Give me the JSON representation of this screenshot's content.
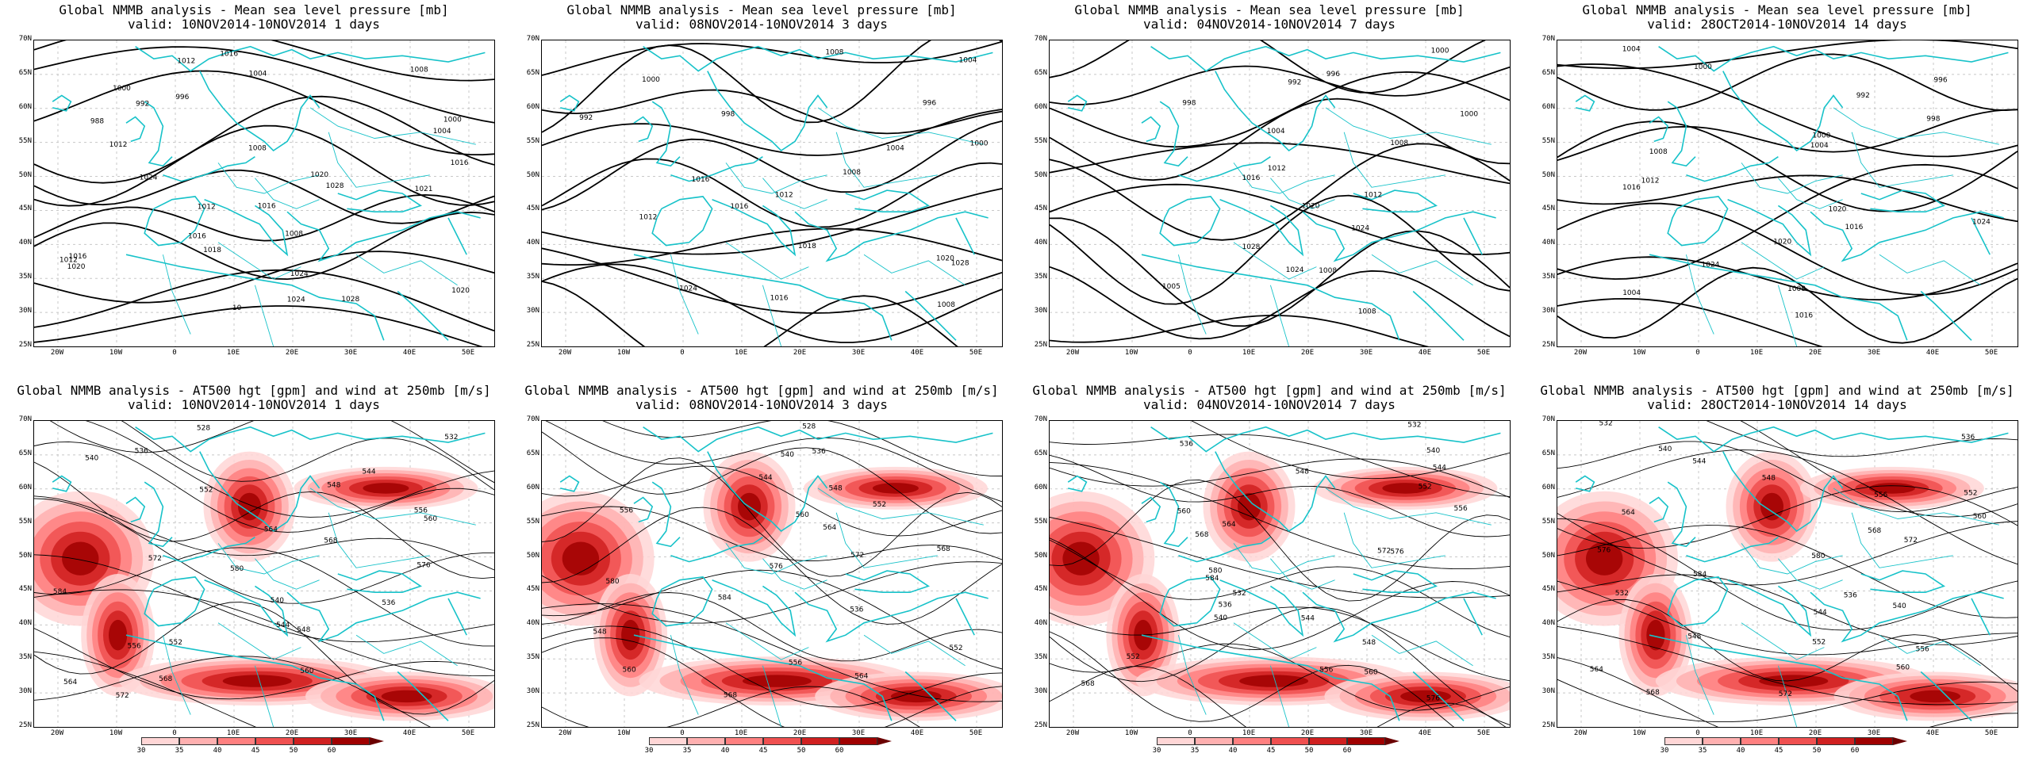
{
  "panels": [
    {
      "row": 0,
      "col": 0,
      "title_line1": "Global NMMB analysis - Mean sea level pressure [mb]",
      "title_line2": "valid: 10NOV2014-10NOV2014  1 days",
      "type": "mslp",
      "contour_labels": [
        "1016",
        "1012",
        "1008",
        "1004",
        "1000",
        "996",
        "992",
        "988",
        "1000",
        "1004",
        "1008",
        "1012",
        "1016",
        "1020",
        "1024",
        "1028",
        "1021",
        "1016",
        "1012",
        "1008",
        "1016",
        "1018",
        "1012",
        "1016",
        "1020",
        "1024",
        "1020",
        "1028",
        "1024",
        "10"
      ]
    },
    {
      "row": 0,
      "col": 1,
      "title_line1": "Global NMMB analysis - Mean sea level pressure [mb]",
      "title_line2": "valid: 08NOV2014-10NOV2014  3 days",
      "type": "mslp",
      "contour_labels": [
        "1008",
        "1004",
        "1000",
        "996",
        "992",
        "998",
        "1000",
        "1004",
        "1008",
        "1016",
        "1012",
        "1016",
        "1012",
        "1018",
        "1020",
        "1028",
        "1024",
        "1016",
        "1008"
      ]
    },
    {
      "row": 0,
      "col": 2,
      "title_line1": "Global NMMB analysis - Mean sea level pressure [mb]",
      "title_line2": "valid: 04NOV2014-10NOV2014  7 days",
      "type": "mslp",
      "contour_labels": [
        "1000",
        "996",
        "992",
        "998",
        "1000",
        "1004",
        "1008",
        "1012",
        "1016",
        "1012",
        "1020",
        "1024",
        "1028",
        "1024",
        "1008",
        "1005",
        "1008"
      ]
    },
    {
      "row": 0,
      "col": 3,
      "title_line1": "Global NMMB analysis - Mean sea level pressure [mb]",
      "title_line2": "valid: 28OCT2014-10NOV2014  14 days",
      "type": "mslp",
      "contour_labels": [
        "1004",
        "1000",
        "996",
        "992",
        "998",
        "1000",
        "1004",
        "1008",
        "1012",
        "1016",
        "1020",
        "1024",
        "1016",
        "1020",
        "1024",
        "1008",
        "1004",
        "1016"
      ]
    },
    {
      "row": 1,
      "col": 0,
      "title_line1": "Global NMMB analysis - AT500 hgt [gpm] and wind at 250mb [m/s]",
      "title_line2": "valid: 10NOV2014-10NOV2014  1 days",
      "type": "z500",
      "contour_labels": [
        "528",
        "532",
        "536",
        "540",
        "544",
        "548",
        "552",
        "556",
        "560",
        "564",
        "568",
        "572",
        "576",
        "580",
        "584",
        "536",
        "540",
        "544",
        "548",
        "552",
        "556",
        "560",
        "564",
        "568",
        "572"
      ]
    },
    {
      "row": 1,
      "col": 1,
      "title_line1": "Global NMMB analysis - AT500 hgt [gpm] and wind at 250mb [m/s]",
      "title_line2": "valid: 08NOV2014-10NOV2014  3 days",
      "type": "z500",
      "contour_labels": [
        "528",
        "536",
        "540",
        "544",
        "548",
        "552",
        "556",
        "560",
        "564",
        "568",
        "572",
        "576",
        "580",
        "584",
        "536",
        "548",
        "552",
        "556",
        "560",
        "564",
        "568"
      ]
    },
    {
      "row": 1,
      "col": 2,
      "title_line1": "Global NMMB analysis - AT500 hgt [gpm] and wind at 250mb [m/s]",
      "title_line2": "valid: 04NOV2014-10NOV2014  7 days",
      "type": "z500",
      "contour_labels": [
        "532",
        "536",
        "540",
        "544",
        "548",
        "552",
        "556",
        "560",
        "564",
        "568",
        "572",
        "576",
        "580",
        "584",
        "532",
        "536",
        "540",
        "544",
        "548",
        "552",
        "556",
        "560",
        "568",
        "576"
      ]
    },
    {
      "row": 1,
      "col": 3,
      "title_line1": "Global NMMB analysis - AT500 hgt [gpm] and wind at 250mb [m/s]",
      "title_line2": "valid: 28OCT2014-10NOV2014  14 days",
      "type": "z500",
      "contour_labels": [
        "532",
        "536",
        "540",
        "544",
        "548",
        "552",
        "556",
        "560",
        "564",
        "568",
        "572",
        "576",
        "580",
        "584",
        "532",
        "536",
        "540",
        "544",
        "548",
        "552",
        "556",
        "560",
        "564",
        "568",
        "572"
      ]
    }
  ],
  "lat_labels": [
    "70N",
    "65N",
    "60N",
    "55N",
    "50N",
    "45N",
    "40N",
    "35N",
    "30N",
    "25N"
  ],
  "lon_labels": [
    "20W",
    "10W",
    "0",
    "10E",
    "20E",
    "30E",
    "40E",
    "50E"
  ],
  "colorbar": {
    "ticks": [
      "30",
      "35",
      "40",
      "45",
      "50",
      "60"
    ],
    "colors": [
      "#ffd6d6",
      "#ffb0b0",
      "#ff8080",
      "#f05050",
      "#d02020",
      "#a00000"
    ],
    "tail_color": "#6b0000"
  },
  "colors": {
    "coastline": "#17c2c9",
    "contour": "#000000",
    "gridline": "#c8c8c8"
  }
}
